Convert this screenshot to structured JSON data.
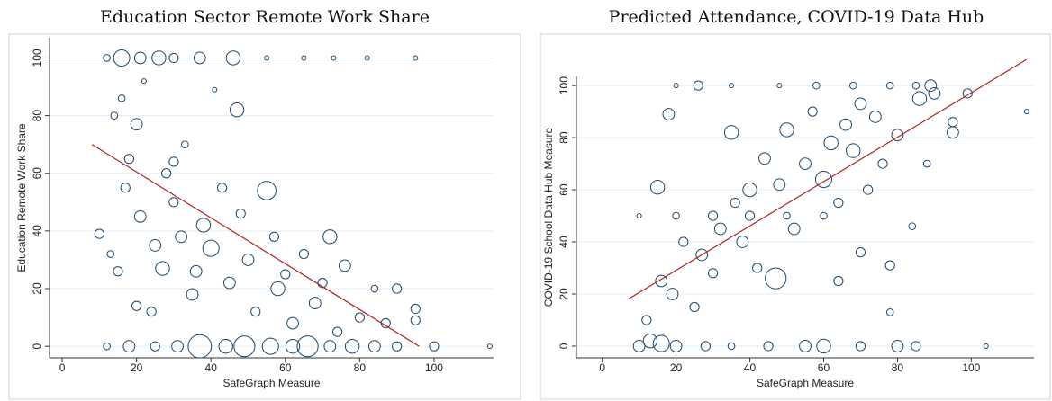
{
  "chart_data": [
    {
      "type": "scatter",
      "title": "Education Sector Remote Work Share",
      "xlabel": "SafeGraph Measure",
      "ylabel": "Education Remote Work Share",
      "color": "#1a476f",
      "grid": true,
      "xlim": [
        -3.4,
        116
      ],
      "ylim": [
        -4,
        107
      ],
      "xticks": [
        0,
        20,
        40,
        60,
        80,
        100
      ],
      "yticks": [
        0,
        20,
        40,
        60,
        80,
        100
      ],
      "points": {
        "x": [
          12,
          16,
          21,
          26,
          30,
          37,
          46,
          55,
          65,
          73,
          82,
          95,
          12,
          18,
          25,
          31,
          37,
          44,
          49,
          56,
          62,
          66,
          72,
          78,
          84,
          90,
          100,
          115,
          10,
          14,
          16,
          18,
          20,
          22,
          17,
          21,
          25,
          28,
          27,
          30,
          33,
          35,
          38,
          40,
          41,
          43,
          45,
          47,
          48,
          50,
          52,
          55,
          57,
          58,
          60,
          62,
          65,
          68,
          70,
          72,
          74,
          76,
          80,
          84,
          87,
          90,
          95,
          95,
          20,
          24,
          32,
          36,
          15,
          13,
          30
        ],
        "y": [
          100,
          100,
          100,
          100,
          100,
          100,
          100,
          100,
          100,
          100,
          100,
          100,
          0,
          0,
          0,
          0,
          0,
          0,
          0,
          0,
          0,
          0,
          0,
          0,
          0,
          0,
          0,
          0,
          39,
          80,
          86,
          65,
          77,
          92,
          55,
          45,
          35,
          60,
          27,
          50,
          70,
          18,
          42,
          34,
          89,
          55,
          22,
          82,
          46,
          30,
          12,
          54,
          38,
          20,
          25,
          8,
          32,
          15,
          22,
          38,
          5,
          28,
          10,
          20,
          8,
          20,
          13,
          9,
          14,
          12,
          38,
          26,
          26,
          32,
          64
        ],
        "size": [
          2,
          6,
          4,
          5,
          3,
          4,
          5,
          1,
          1,
          1,
          1,
          1,
          2,
          4,
          3,
          4,
          9,
          5,
          8,
          6,
          5,
          8,
          4,
          5,
          4,
          3,
          3,
          1,
          3,
          2,
          2,
          3,
          4,
          1,
          3,
          4,
          4,
          3,
          5,
          3,
          2,
          4,
          5,
          6,
          1,
          3,
          4,
          5,
          3,
          4,
          3,
          7,
          3,
          5,
          3,
          4,
          3,
          4,
          3,
          5,
          3,
          4,
          3,
          2,
          3,
          3,
          3,
          3,
          3,
          3,
          4,
          4,
          3,
          2,
          3
        ]
      },
      "fit": {
        "color": "#b22222",
        "x": [
          8,
          96
        ],
        "y": [
          70,
          0
        ]
      }
    },
    {
      "type": "scatter",
      "title": "Predicted Attendance, COVID-19 Data Hub",
      "xlabel": "SafeGraph Measure",
      "ylabel": "COVID-19 School Data Hub Measure",
      "color": "#1a476f",
      "grid": true,
      "xlim": [
        -7,
        117
      ],
      "ylim": [
        -4.5,
        103.5
      ],
      "xticks": [
        0,
        20,
        40,
        60,
        80,
        100
      ],
      "yticks": [
        0,
        20,
        40,
        60,
        80,
        100
      ],
      "points": {
        "x": [
          20,
          26,
          35,
          48,
          58,
          68,
          78,
          85,
          89,
          10,
          20,
          30,
          40,
          50,
          60,
          10,
          13,
          16,
          20,
          28,
          35,
          45,
          55,
          60,
          70,
          80,
          85,
          104,
          12,
          15,
          16,
          18,
          19,
          22,
          25,
          27,
          30,
          32,
          35,
          36,
          38,
          40,
          42,
          44,
          47,
          48,
          50,
          52,
          55,
          57,
          60,
          62,
          64,
          66,
          68,
          70,
          72,
          74,
          76,
          78,
          80,
          84,
          86,
          88,
          90,
          95,
          95,
          99,
          115,
          64,
          78,
          70
        ],
        "y": [
          100,
          100,
          100,
          100,
          100,
          100,
          100,
          100,
          100,
          50,
          50,
          50,
          50,
          50,
          50,
          0,
          2,
          1,
          0,
          0,
          0,
          0,
          0,
          0,
          0,
          0,
          0,
          0,
          10,
          61,
          25,
          89,
          20,
          40,
          15,
          35,
          28,
          45,
          82,
          55,
          40,
          60,
          30,
          72,
          26,
          62,
          83,
          45,
          70,
          90,
          64,
          78,
          55,
          85,
          75,
          93,
          60,
          88,
          70,
          31,
          81,
          46,
          95,
          70,
          97,
          86,
          82,
          97,
          90,
          25,
          13,
          36
        ],
        "size": [
          1,
          3,
          1,
          1,
          2,
          2,
          2,
          2,
          4,
          1,
          2,
          3,
          3,
          2,
          2,
          4,
          5,
          6,
          4,
          3,
          2,
          3,
          4,
          5,
          3,
          4,
          3,
          1,
          3,
          5,
          4,
          4,
          4,
          3,
          3,
          4,
          3,
          4,
          5,
          3,
          4,
          5,
          3,
          4,
          8,
          4,
          5,
          4,
          4,
          3,
          6,
          5,
          3,
          4,
          5,
          4,
          3,
          4,
          3,
          3,
          4,
          2,
          5,
          2,
          4,
          3,
          4,
          3,
          1,
          3,
          2,
          3
        ]
      },
      "fit": {
        "color": "#b22222",
        "x": [
          7,
          115
        ],
        "y": [
          18,
          110
        ]
      }
    }
  ]
}
